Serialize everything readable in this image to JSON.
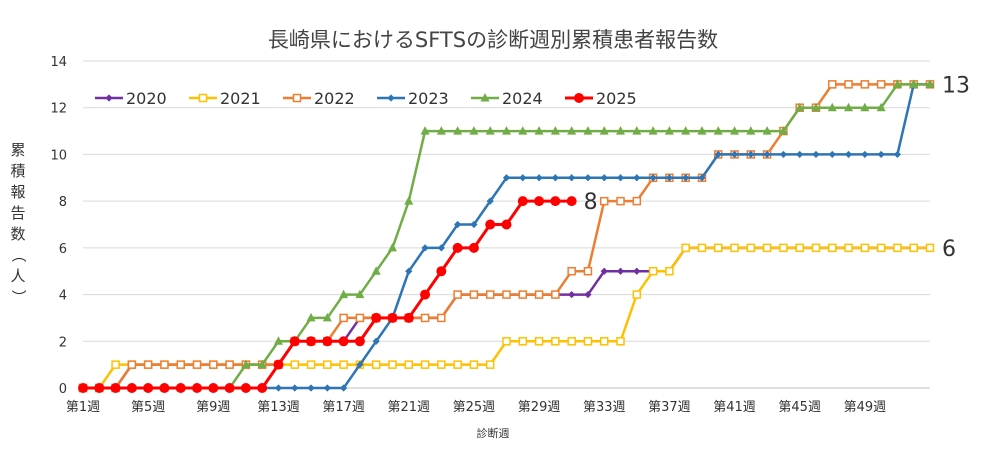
{
  "chart_data": {
    "type": "line",
    "title": "長崎県におけるSFTSの診断週別累積患者報告数",
    "xlabel": "診断週",
    "ylabel": "累積報告数（人）",
    "ylim": [
      0,
      14
    ],
    "yticks": [
      0,
      2,
      4,
      6,
      8,
      10,
      12,
      14
    ],
    "xlim": [
      1,
      53
    ],
    "xtick_values": [
      1,
      5,
      9,
      13,
      17,
      21,
      25,
      29,
      33,
      37,
      41,
      45,
      49
    ],
    "xtick_labels": [
      "第1週",
      "第5週",
      "第9週",
      "第13週",
      "第17週",
      "第21週",
      "第25週",
      "第29週",
      "第33週",
      "第37週",
      "第41週",
      "第45週",
      "第49週"
    ],
    "grid": "horizontal",
    "legend": "top-left",
    "series": [
      {
        "name": "2020",
        "color": "#7030a0",
        "marker": "diamond",
        "values": [
          0,
          0,
          0,
          1,
          1,
          1,
          1,
          1,
          1,
          1,
          1,
          1,
          1,
          2,
          2,
          2,
          2,
          3,
          3,
          3,
          3,
          3,
          3,
          4,
          4,
          4,
          4,
          4,
          4,
          4,
          4,
          4,
          5,
          5,
          5,
          5,
          5,
          6,
          6,
          6,
          6,
          6,
          6,
          6,
          6,
          6,
          6,
          6,
          6,
          6,
          6,
          6,
          6
        ]
      },
      {
        "name": "2021",
        "color": "#ffc000",
        "marker": "square",
        "values": [
          0,
          0,
          1,
          1,
          1,
          1,
          1,
          1,
          1,
          1,
          1,
          1,
          1,
          1,
          1,
          1,
          1,
          1,
          1,
          1,
          1,
          1,
          1,
          1,
          1,
          1,
          2,
          2,
          2,
          2,
          2,
          2,
          2,
          2,
          4,
          5,
          5,
          6,
          6,
          6,
          6,
          6,
          6,
          6,
          6,
          6,
          6,
          6,
          6,
          6,
          6,
          6,
          6
        ]
      },
      {
        "name": "2022",
        "color": "#ed7d31",
        "marker": "square",
        "values": [
          0,
          0,
          0,
          1,
          1,
          1,
          1,
          1,
          1,
          1,
          1,
          1,
          1,
          2,
          2,
          2,
          3,
          3,
          3,
          3,
          3,
          3,
          3,
          4,
          4,
          4,
          4,
          4,
          4,
          4,
          5,
          5,
          8,
          8,
          8,
          9,
          9,
          9,
          9,
          10,
          10,
          10,
          10,
          11,
          12,
          12,
          13,
          13,
          13,
          13,
          13,
          13,
          13
        ]
      },
      {
        "name": "2023",
        "color": "#2e75b6",
        "marker": "diamond",
        "values": [
          0,
          0,
          0,
          0,
          0,
          0,
          0,
          0,
          0,
          0,
          0,
          0,
          0,
          0,
          0,
          0,
          0,
          1,
          2,
          3,
          5,
          6,
          6,
          7,
          7,
          8,
          9,
          9,
          9,
          9,
          9,
          9,
          9,
          9,
          9,
          9,
          9,
          9,
          9,
          10,
          10,
          10,
          10,
          10,
          10,
          10,
          10,
          10,
          10,
          10,
          10,
          13,
          13
        ]
      },
      {
        "name": "2024",
        "color": "#70ad47",
        "marker": "triangle",
        "values": [
          0,
          0,
          0,
          0,
          0,
          0,
          0,
          0,
          0,
          0,
          1,
          1,
          2,
          2,
          3,
          3,
          4,
          4,
          5,
          6,
          8,
          11,
          11,
          11,
          11,
          11,
          11,
          11,
          11,
          11,
          11,
          11,
          11,
          11,
          11,
          11,
          11,
          11,
          11,
          11,
          11,
          11,
          11,
          11,
          12,
          12,
          12,
          12,
          12,
          12,
          13,
          13,
          13
        ]
      },
      {
        "name": "2025",
        "color": "#ff0000",
        "marker": "circle",
        "values": [
          0,
          0,
          0,
          0,
          0,
          0,
          0,
          0,
          0,
          0,
          0,
          0,
          1,
          2,
          2,
          2,
          2,
          2,
          3,
          3,
          3,
          4,
          5,
          6,
          6,
          7,
          7,
          8,
          8,
          8,
          8
        ]
      }
    ],
    "annotations": [
      {
        "text": "13",
        "x": 53,
        "y": 13
      },
      {
        "text": "8",
        "x": 31,
        "y": 8
      },
      {
        "text": "6",
        "x": 53,
        "y": 6
      }
    ]
  }
}
